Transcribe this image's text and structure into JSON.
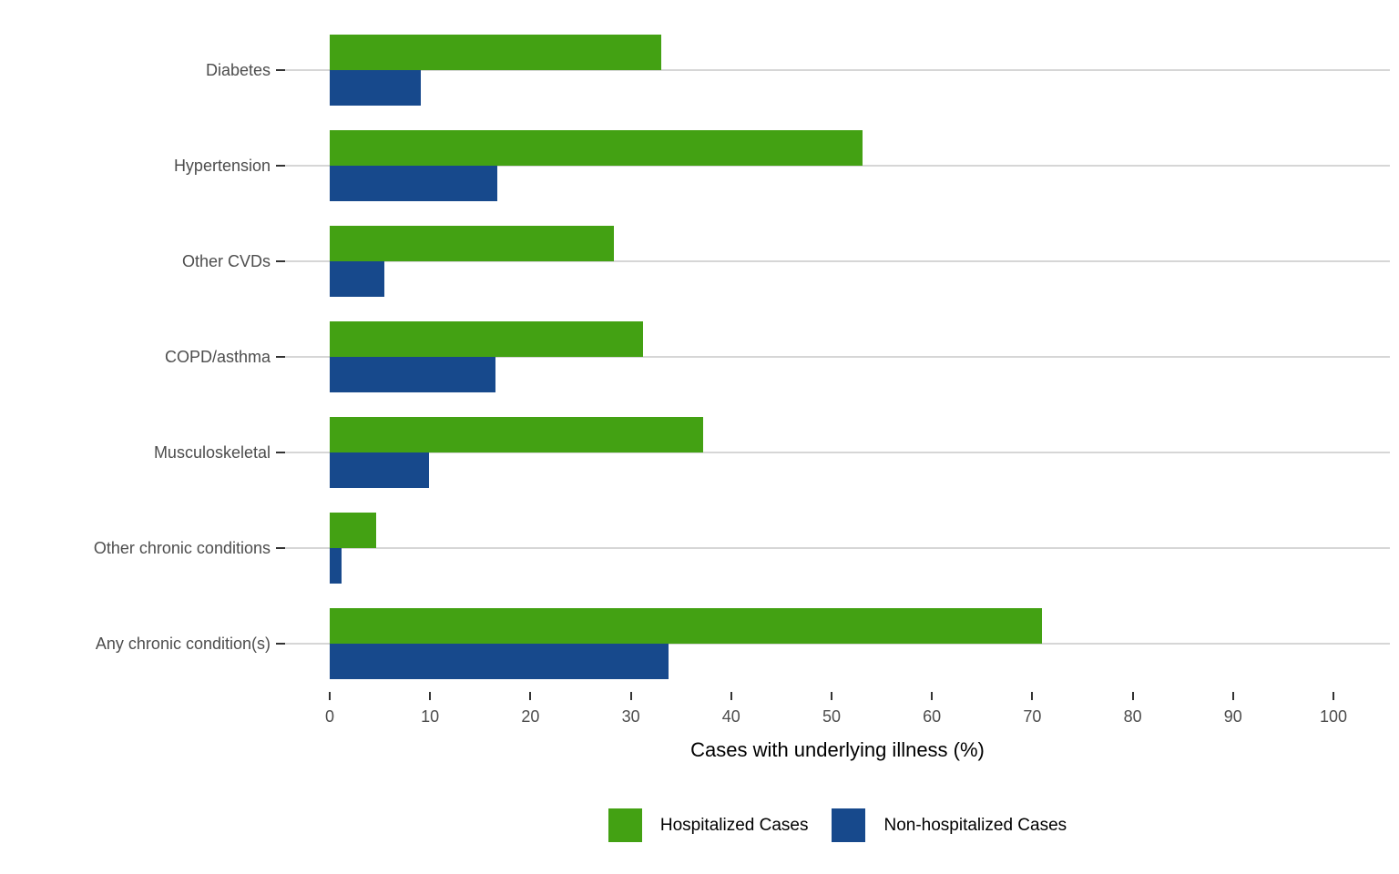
{
  "chart_data": {
    "type": "bar",
    "orientation": "horizontal",
    "title": "",
    "xlabel": "Cases with underlying illness (%)",
    "ylabel": "",
    "categories": [
      "Diabetes",
      "Hypertension",
      "Other CVDs",
      "COPD/asthma",
      "Musculoskeletal",
      "Other chronic conditions",
      "Any chronic condition(s)"
    ],
    "series": [
      {
        "name": "Hospitalized Cases",
        "color": "#43A113",
        "values": [
          33.0,
          53.1,
          28.3,
          31.2,
          37.2,
          4.6,
          71.0
        ]
      },
      {
        "name": "Non-hospitalized Cases",
        "color": "#17498C",
        "values": [
          9.1,
          16.7,
          5.4,
          16.5,
          9.9,
          1.2,
          33.8
        ]
      }
    ],
    "xlim": [
      0,
      100
    ],
    "xticks": [
      0,
      10,
      20,
      30,
      40,
      50,
      60,
      70,
      80,
      90,
      100
    ],
    "grid": "horizontal-category-gridlines-only",
    "legend_position": "bottom"
  },
  "styles": {
    "background": "#FFFFFF",
    "grid_line_color": "#D6D6D6",
    "tick_mark_color": "#333333",
    "tick_label_color": "#4D4D4D",
    "axis_title_color": "#000000"
  }
}
